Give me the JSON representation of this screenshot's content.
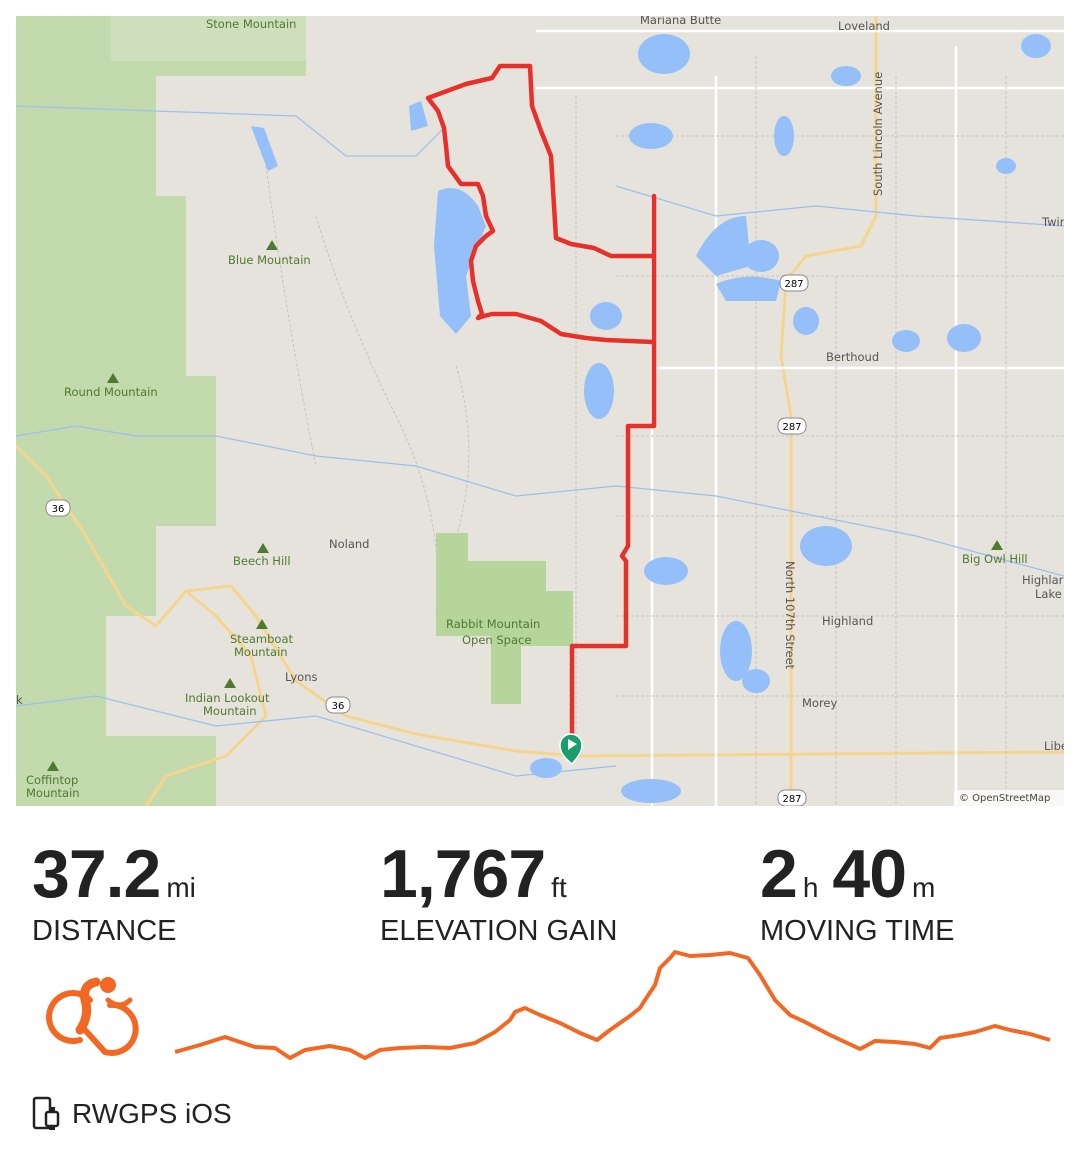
{
  "map": {
    "attribution": "© OpenStreetMap",
    "labels": {
      "mariana_butte": "Mariana Butte",
      "loveland": "Loveland",
      "south_lincoln": "South Lincoln Avenue",
      "twin": "Twin",
      "blue_mountain": "Blue Mountain",
      "round_mountain": "Round Mountain",
      "berthoud": "Berthoud",
      "noland": "Noland",
      "beech_hill": "Beech Hill",
      "rabbit_mountain_1": "Rabbit Mountain",
      "rabbit_mountain_2": "Open Space",
      "steamboat_1": "Steamboat",
      "steamboat_2": "Mountain",
      "lyons": "Lyons",
      "indian_lookout_1": "Indian Lookout",
      "indian_lookout_2": "Mountain",
      "coffintop_1": "Coffintop",
      "coffintop_2": "Mountain",
      "north_107th": "North 107th Street",
      "highland": "Highland",
      "morey": "Morey",
      "big_owl_hill": "Big Owl Hill",
      "highland_lake_1": "Highlar",
      "highland_lake_2": "Lake",
      "libe": "Libe",
      "stone_mountain": "Stone Mountain",
      "k": "k"
    },
    "shields": [
      "287",
      "287",
      "287",
      "36",
      "36"
    ],
    "colors": {
      "route": "#e8302a",
      "start": "#1a9e6e",
      "water": "#94bff8",
      "park": "#b8d8a0",
      "land": "#e6e3dd"
    }
  },
  "stats": {
    "distance": {
      "value": "37.2",
      "unit": "mi",
      "label": "DISTANCE"
    },
    "elevation": {
      "value": "1,767",
      "unit": "ft",
      "label": "ELEVATION GAIN"
    },
    "time": {
      "hours": "2",
      "hours_unit": "h",
      "minutes": "40",
      "minutes_unit": "m",
      "label": "MOVING TIME"
    }
  },
  "activity_icon": "cyclist-icon",
  "accent": "#f26722",
  "source": {
    "icon": "phone-watch-icon",
    "label": "RWGPS iOS"
  }
}
